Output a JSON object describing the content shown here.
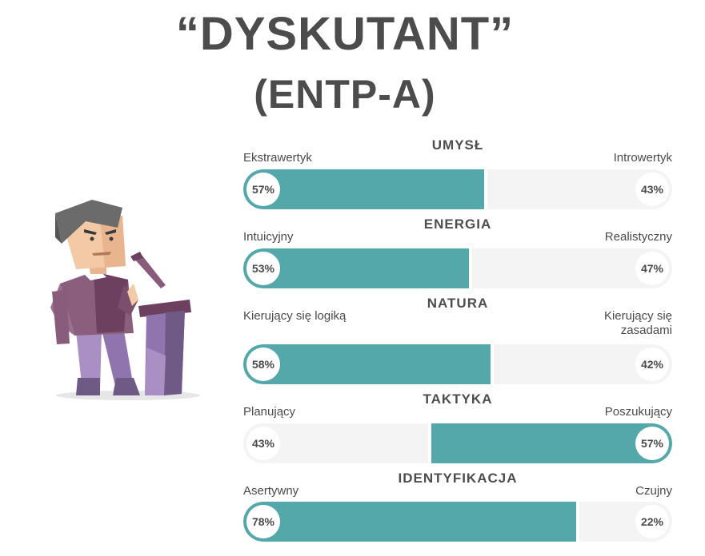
{
  "title": "“DYSKUTANT”",
  "subtitle": "(ENTP-A)",
  "colors": {
    "accent": "#54a8aa",
    "track": "#f4f4f4",
    "text": "#4a4a4a"
  },
  "traits": [
    {
      "name": "UMYSŁ",
      "left_label": "Ekstrawertyk",
      "right_label": "Introwertyk",
      "left_pct": "57%",
      "right_pct": "43%",
      "left_value": 57,
      "dominant": "left"
    },
    {
      "name": "ENERGIA",
      "left_label": "Intuicyjny",
      "right_label": "Realistyczny",
      "left_pct": "53%",
      "right_pct": "47%",
      "left_value": 53,
      "dominant": "left"
    },
    {
      "name": "NATURA",
      "left_label": "Kierujący się logiką",
      "right_label": "Kierujący się zasadami",
      "left_pct": "58%",
      "right_pct": "42%",
      "left_value": 58,
      "dominant": "left"
    },
    {
      "name": "TAKTYKA",
      "left_label": "Planujący",
      "right_label": "Poszukujący",
      "left_pct": "43%",
      "right_pct": "57%",
      "left_value": 43,
      "dominant": "right"
    },
    {
      "name": "IDENTYFIKACJA",
      "left_label": "Asertywny",
      "right_label": "Czujny",
      "left_pct": "78%",
      "right_pct": "22%",
      "left_value": 78,
      "dominant": "left"
    }
  ]
}
